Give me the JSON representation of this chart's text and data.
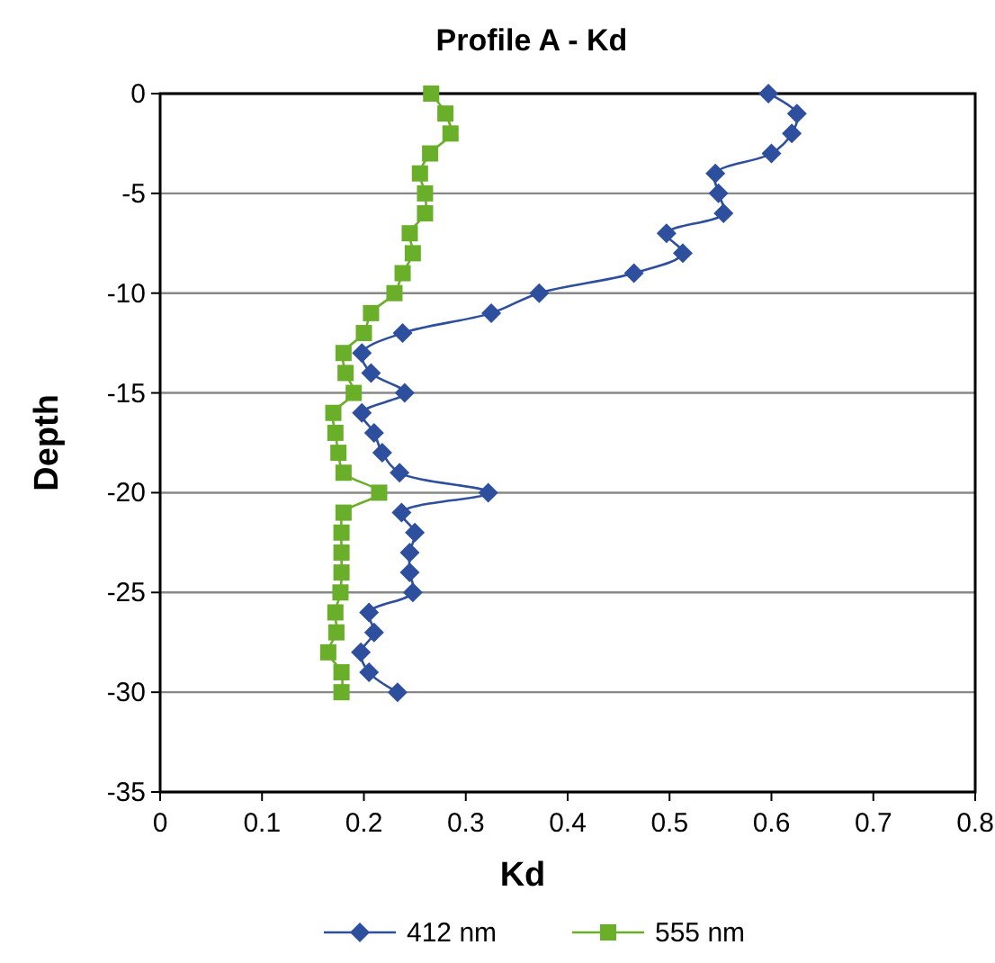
{
  "chart_data": {
    "type": "line",
    "title": "Profile A - Kd",
    "xlabel": "Kd",
    "ylabel": "Depth",
    "xlim": [
      0,
      0.8
    ],
    "xticks": [
      0,
      0.1,
      0.2,
      0.3,
      0.4,
      0.5,
      0.6,
      0.7,
      0.8
    ],
    "ylim": [
      -35,
      0
    ],
    "yticks": [
      -35,
      -30,
      -25,
      -20,
      -15,
      -10,
      -5,
      0
    ],
    "grid": "y",
    "legend": "bottom",
    "series": [
      {
        "name": "412 nm",
        "color": "#2e4f9e",
        "marker": "diamond",
        "x": [
          0.597,
          0.625,
          0.62,
          0.6,
          0.545,
          0.548,
          0.553,
          0.497,
          0.513,
          0.465,
          0.372,
          0.325,
          0.238,
          0.198,
          0.207,
          0.24,
          0.198,
          0.21,
          0.218,
          0.235,
          0.322,
          0.237,
          0.25,
          0.245,
          0.245,
          0.248,
          0.205,
          0.21,
          0.197,
          0.205,
          0.233
        ],
        "values": [
          0,
          -1,
          -2,
          -3,
          -4,
          -5,
          -6,
          -7,
          -8,
          -9,
          -10,
          -11,
          -12,
          -13,
          -14,
          -15,
          -16,
          -17,
          -18,
          -19,
          -20,
          -21,
          -22,
          -23,
          -24,
          -25,
          -26,
          -27,
          -28,
          -29,
          -30
        ]
      },
      {
        "name": "555 nm",
        "color": "#6aaf2a",
        "marker": "square",
        "x": [
          0.266,
          0.28,
          0.285,
          0.265,
          0.255,
          0.26,
          0.26,
          0.245,
          0.248,
          0.238,
          0.23,
          0.207,
          0.2,
          0.18,
          0.182,
          0.19,
          0.17,
          0.172,
          0.175,
          0.18,
          0.215,
          0.18,
          0.178,
          0.178,
          0.178,
          0.177,
          0.172,
          0.173,
          0.165,
          0.178,
          0.178
        ],
        "values": [
          0,
          -1,
          -2,
          -3,
          -4,
          -5,
          -6,
          -7,
          -8,
          -9,
          -10,
          -11,
          -12,
          -13,
          -14,
          -15,
          -16,
          -17,
          -18,
          -19,
          -20,
          -21,
          -22,
          -23,
          -24,
          -25,
          -26,
          -27,
          -28,
          -29,
          -30
        ]
      }
    ]
  }
}
